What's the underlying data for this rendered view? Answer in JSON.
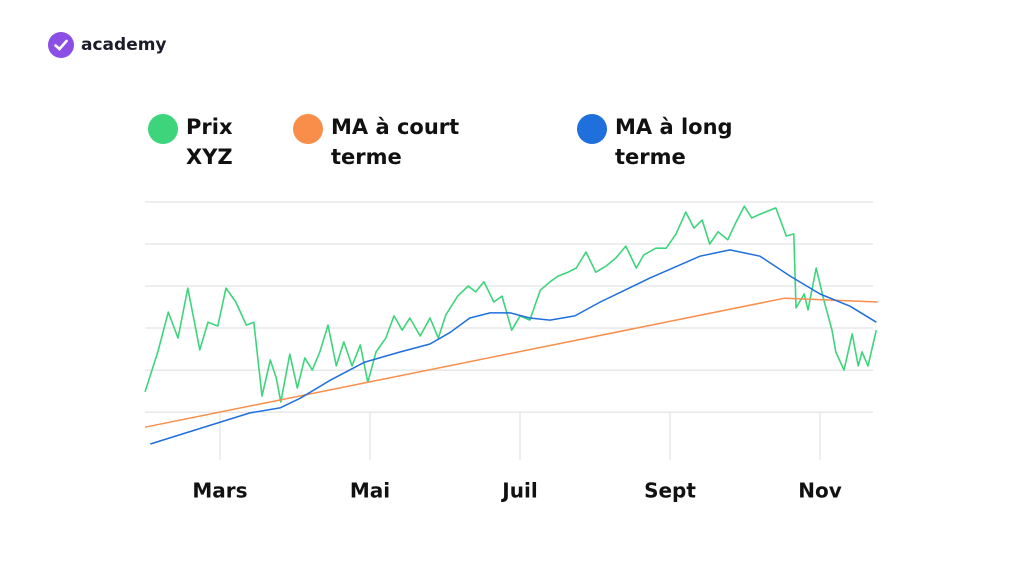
{
  "brand": "academy",
  "chart_data": {
    "type": "line",
    "xlim": [
      2,
      11.8
    ],
    "xticks": [
      {
        "value": 3,
        "label": "Mars"
      },
      {
        "value": 5,
        "label": "Mai"
      },
      {
        "value": 7,
        "label": "Juil"
      },
      {
        "value": 9,
        "label": "Sept"
      },
      {
        "value": 11,
        "label": "Nov"
      }
    ],
    "ylim": [
      -1.14,
      5
    ],
    "yticks": [
      0,
      1,
      2,
      3,
      4,
      5
    ],
    "grid": true,
    "legend": "top",
    "series": [
      {
        "name": "Prix XYZ",
        "color": "#3ed47c",
        "x": [
          2.0,
          2.17,
          2.31,
          2.44,
          2.57,
          2.73,
          2.84,
          2.97,
          3.08,
          3.21,
          3.35,
          3.45,
          3.56,
          3.67,
          3.75,
          3.81,
          3.93,
          4.03,
          4.13,
          4.23,
          4.33,
          4.44,
          4.55,
          4.65,
          4.76,
          4.87,
          4.97,
          5.08,
          5.21,
          5.32,
          5.43,
          5.53,
          5.67,
          5.8,
          5.91,
          6.01,
          6.17,
          6.31,
          6.41,
          6.52,
          6.65,
          6.76,
          6.89,
          7.0,
          7.13,
          7.27,
          7.4,
          7.51,
          7.64,
          7.75,
          7.88,
          8.01,
          8.15,
          8.28,
          8.41,
          8.55,
          8.65,
          8.81,
          8.95,
          9.08,
          9.21,
          9.32,
          9.43,
          9.53,
          9.64,
          9.77,
          9.88,
          9.99,
          10.09,
          10.2,
          10.41,
          10.55,
          10.65,
          10.68,
          10.79,
          10.84,
          10.95,
          11.05,
          11.16,
          11.21,
          11.32,
          11.43,
          11.51,
          11.56,
          11.64,
          11.75
        ],
        "values": [
          0.48,
          1.43,
          2.38,
          1.76,
          2.95,
          1.48,
          2.14,
          2.05,
          2.95,
          2.62,
          2.07,
          2.14,
          0.38,
          1.24,
          0.81,
          0.24,
          1.38,
          0.57,
          1.29,
          1.0,
          1.43,
          2.07,
          1.1,
          1.67,
          1.1,
          1.6,
          0.71,
          1.43,
          1.76,
          2.29,
          1.95,
          2.24,
          1.81,
          2.24,
          1.76,
          2.31,
          2.76,
          3.0,
          2.86,
          3.1,
          2.62,
          2.76,
          1.95,
          2.29,
          2.19,
          2.9,
          3.1,
          3.24,
          3.33,
          3.43,
          3.81,
          3.33,
          3.48,
          3.67,
          3.95,
          3.43,
          3.74,
          3.9,
          3.9,
          4.24,
          4.76,
          4.38,
          4.57,
          4.0,
          4.29,
          4.1,
          4.52,
          4.9,
          4.62,
          4.71,
          4.86,
          4.19,
          4.24,
          2.48,
          2.81,
          2.43,
          3.43,
          2.67,
          1.95,
          1.43,
          1.0,
          1.86,
          1.1,
          1.43,
          1.1,
          1.95
        ]
      },
      {
        "name": "MA à court terme",
        "color": "#f98e4a",
        "x": [
          2.0,
          10.53,
          11.77
        ],
        "values": [
          -0.36,
          2.71,
          2.62
        ]
      },
      {
        "name": "MA à long terme",
        "color": "#1f6fdc",
        "x": [
          2.07,
          3.4,
          3.8,
          4.07,
          4.47,
          4.93,
          5.4,
          5.8,
          6.07,
          6.33,
          6.6,
          6.87,
          7.13,
          7.4,
          7.73,
          8.07,
          8.73,
          9.4,
          9.8,
          10.2,
          10.6,
          11.0,
          11.4,
          11.75
        ],
        "values": [
          -0.76,
          -0.02,
          0.1,
          0.33,
          0.76,
          1.19,
          1.43,
          1.62,
          1.9,
          2.24,
          2.36,
          2.36,
          2.24,
          2.19,
          2.29,
          2.62,
          3.19,
          3.71,
          3.86,
          3.71,
          3.24,
          2.81,
          2.52,
          2.14
        ]
      }
    ]
  }
}
